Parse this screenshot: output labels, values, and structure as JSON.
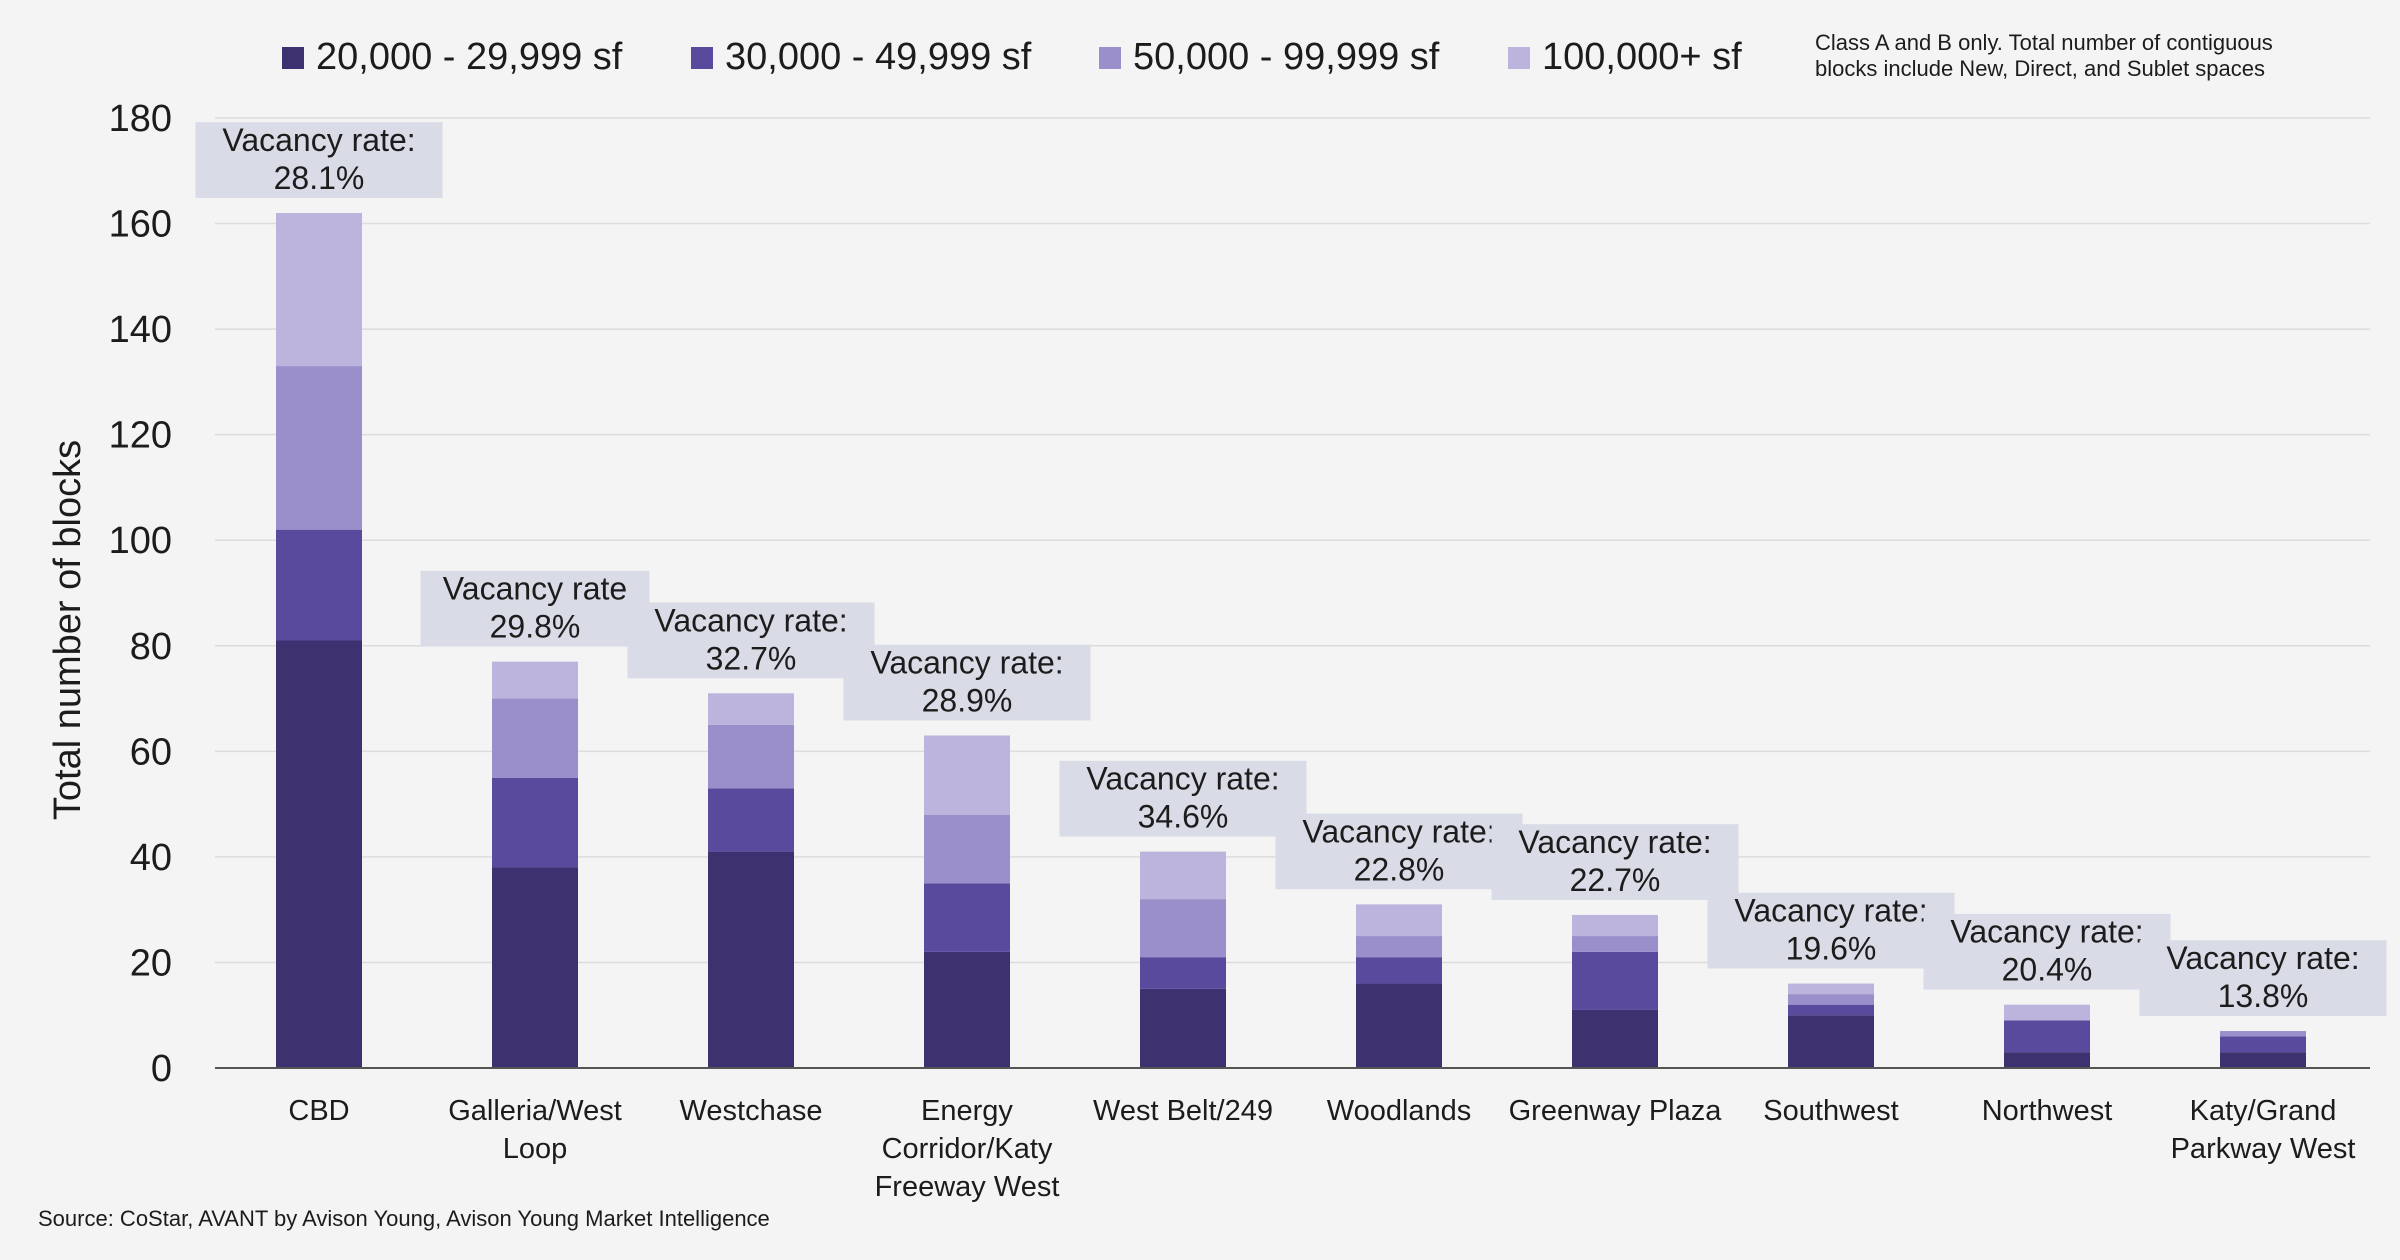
{
  "chart_data": {
    "type": "bar",
    "stacked": true,
    "title": "",
    "xlabel": "",
    "ylabel": "Total number of blocks",
    "ylim": [
      0,
      180
    ],
    "yticks": [
      0,
      20,
      40,
      60,
      80,
      100,
      120,
      140,
      160,
      180
    ],
    "grid": true,
    "legend_position": "top",
    "categories": [
      "CBD",
      "Galleria/West Loop",
      "Westchase",
      "Energy Corridor/Katy Freeway West",
      "West Belt/249",
      "Woodlands",
      "Greenway Plaza",
      "Southwest",
      "Northwest",
      "Katy/Grand Parkway West"
    ],
    "category_label_lines": [
      [
        "CBD"
      ],
      [
        "Galleria/West",
        "Loop"
      ],
      [
        "Westchase"
      ],
      [
        "Energy",
        "Corridor/Katy",
        "Freeway West"
      ],
      [
        "West Belt/249"
      ],
      [
        "Woodlands"
      ],
      [
        "Greenway Plaza"
      ],
      [
        "Southwest"
      ],
      [
        "Northwest"
      ],
      [
        "Katy/Grand",
        "Parkway West"
      ]
    ],
    "series": [
      {
        "name": "20,000 - 29,999 sf",
        "color": "#3d3170",
        "values": [
          81,
          38,
          41,
          22,
          15,
          16,
          11,
          10,
          3,
          3
        ]
      },
      {
        "name": "30,000 - 49,999 sf",
        "color": "#5a4a9e",
        "values": [
          21,
          17,
          12,
          13,
          6,
          5,
          11,
          2,
          6,
          3
        ]
      },
      {
        "name": "50,000 - 99,999 sf",
        "color": "#9a8fcb",
        "values": [
          31,
          15,
          12,
          13,
          11,
          4,
          3,
          2,
          0,
          1
        ]
      },
      {
        "name": "100,000+ sf",
        "color": "#bcb4dd",
        "values": [
          29,
          7,
          6,
          15,
          9,
          6,
          4,
          2,
          3,
          0
        ]
      }
    ],
    "annotations": [
      {
        "line1": "Vacancy rate:",
        "line2": "28.1%"
      },
      {
        "line1": "Vacancy rate",
        "line2": "29.8%"
      },
      {
        "line1": "Vacancy rate:",
        "line2": "32.7%"
      },
      {
        "line1": "Vacancy rate:",
        "line2": "28.9%"
      },
      {
        "line1": "Vacancy rate:",
        "line2": "34.6%"
      },
      {
        "line1": "Vacancy rate:",
        "line2": "22.8%"
      },
      {
        "line1": "Vacancy rate:",
        "line2": "22.7%"
      },
      {
        "line1": "Vacancy rate:",
        "line2": "19.6%"
      },
      {
        "line1": "Vacancy rate:",
        "line2": "20.4%"
      },
      {
        "line1": "Vacancy rate:",
        "line2": "13.8%"
      }
    ],
    "note": [
      "Class A and B only. Total number of contiguous",
      "blocks include New, Direct, and Sublet spaces"
    ],
    "source": "Source: CoStar, AVANT by Avison Young, Avison Young Market Intelligence"
  },
  "colors": {
    "background": "#f4f4f4",
    "grid": "#dcdcdc",
    "axis": "#555555",
    "annotation_bg": "#d9dce6",
    "text": "#1c1c1c"
  }
}
